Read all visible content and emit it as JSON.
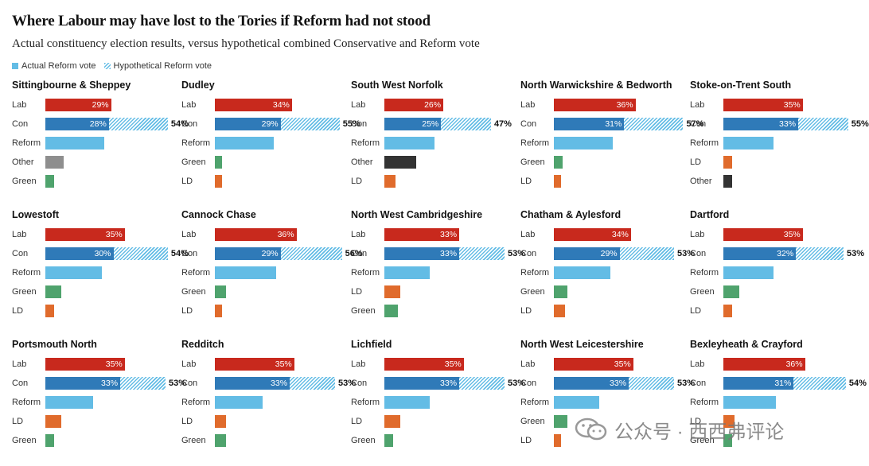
{
  "title": "Where Labour may have lost to the Tories if Reform had not stood",
  "subtitle": "Actual constituency election results, versus hypothetical combined Conservative and Reform vote",
  "legend": {
    "actual": "Actual Reform vote",
    "hypothetical": "Hypothetical Reform vote"
  },
  "colors": {
    "Lab": "#c8291d",
    "Con": "#2f7ab8",
    "Reform": "#63bce5",
    "Other": "#8e8e8e",
    "Green": "#4fa36d",
    "LD": "#e06b2c"
  },
  "watermark": "公众号 · 西西弗评论",
  "chart_data": [
    {
      "type": "bar",
      "title": "Sittingbourne & Sheppey",
      "rows": [
        {
          "party": "Lab",
          "value": 29,
          "label": "29%"
        },
        {
          "party": "Con",
          "value": 28,
          "label": "28%",
          "combined": 54,
          "combined_label": "54%"
        },
        {
          "party": "Reform",
          "value": 26
        },
        {
          "party": "Other",
          "value": 8
        },
        {
          "party": "Green",
          "value": 4
        }
      ]
    },
    {
      "type": "bar",
      "title": "Dudley",
      "rows": [
        {
          "party": "Lab",
          "value": 34,
          "label": "34%"
        },
        {
          "party": "Con",
          "value": 29,
          "label": "29%",
          "combined": 55,
          "combined_label": "55%"
        },
        {
          "party": "Reform",
          "value": 26
        },
        {
          "party": "Green",
          "value": 3
        },
        {
          "party": "LD",
          "value": 3
        }
      ]
    },
    {
      "type": "bar",
      "title": "South West Norfolk",
      "rows": [
        {
          "party": "Lab",
          "value": 26,
          "label": "26%"
        },
        {
          "party": "Con",
          "value": 25,
          "label": "25%",
          "combined": 47,
          "combined_label": "47%"
        },
        {
          "party": "Reform",
          "value": 22
        },
        {
          "party": "Other",
          "value": 14
        },
        {
          "party": "LD",
          "value": 5
        }
      ]
    },
    {
      "type": "bar",
      "title": "North Warwickshire & Bedworth",
      "rows": [
        {
          "party": "Lab",
          "value": 36,
          "label": "36%"
        },
        {
          "party": "Con",
          "value": 31,
          "label": "31%",
          "combined": 57,
          "combined_label": "57%"
        },
        {
          "party": "Reform",
          "value": 26
        },
        {
          "party": "Green",
          "value": 4
        },
        {
          "party": "LD",
          "value": 3
        }
      ]
    },
    {
      "type": "bar",
      "title": "Stoke-on-Trent South",
      "rows": [
        {
          "party": "Lab",
          "value": 35,
          "label": "35%"
        },
        {
          "party": "Con",
          "value": 33,
          "label": "33%",
          "combined": 55,
          "combined_label": "55%"
        },
        {
          "party": "Reform",
          "value": 22
        },
        {
          "party": "LD",
          "value": 4
        },
        {
          "party": "Other",
          "value": 4
        }
      ]
    },
    {
      "type": "bar",
      "title": "Lowestoft",
      "rows": [
        {
          "party": "Lab",
          "value": 35,
          "label": "35%"
        },
        {
          "party": "Con",
          "value": 30,
          "label": "30%",
          "combined": 54,
          "combined_label": "54%"
        },
        {
          "party": "Reform",
          "value": 25
        },
        {
          "party": "Green",
          "value": 7
        },
        {
          "party": "LD",
          "value": 4
        }
      ]
    },
    {
      "type": "bar",
      "title": "Cannock Chase",
      "rows": [
        {
          "party": "Lab",
          "value": 36,
          "label": "36%"
        },
        {
          "party": "Con",
          "value": 29,
          "label": "29%",
          "combined": 56,
          "combined_label": "56%"
        },
        {
          "party": "Reform",
          "value": 27
        },
        {
          "party": "Green",
          "value": 5
        },
        {
          "party": "LD",
          "value": 3
        }
      ]
    },
    {
      "type": "bar",
      "title": "North West Cambridgeshire",
      "rows": [
        {
          "party": "Lab",
          "value": 33,
          "label": "33%"
        },
        {
          "party": "Con",
          "value": 33,
          "label": "33%",
          "combined": 53,
          "combined_label": "53%"
        },
        {
          "party": "Reform",
          "value": 20
        },
        {
          "party": "LD",
          "value": 7
        },
        {
          "party": "Green",
          "value": 6
        }
      ]
    },
    {
      "type": "bar",
      "title": "Chatham & Aylesford",
      "rows": [
        {
          "party": "Lab",
          "value": 34,
          "label": "34%"
        },
        {
          "party": "Con",
          "value": 29,
          "label": "29%",
          "combined": 53,
          "combined_label": "53%"
        },
        {
          "party": "Reform",
          "value": 25
        },
        {
          "party": "Green",
          "value": 6
        },
        {
          "party": "LD",
          "value": 5
        }
      ]
    },
    {
      "type": "bar",
      "title": "Dartford",
      "rows": [
        {
          "party": "Lab",
          "value": 35,
          "label": "35%"
        },
        {
          "party": "Con",
          "value": 32,
          "label": "32%",
          "combined": 53,
          "combined_label": "53%"
        },
        {
          "party": "Reform",
          "value": 22
        },
        {
          "party": "Green",
          "value": 7
        },
        {
          "party": "LD",
          "value": 4
        }
      ]
    },
    {
      "type": "bar",
      "title": "Portsmouth North",
      "rows": [
        {
          "party": "Lab",
          "value": 35,
          "label": "35%"
        },
        {
          "party": "Con",
          "value": 33,
          "label": "33%",
          "combined": 53,
          "combined_label": "53%"
        },
        {
          "party": "Reform",
          "value": 21
        },
        {
          "party": "LD",
          "value": 7
        },
        {
          "party": "Green",
          "value": 4
        }
      ]
    },
    {
      "type": "bar",
      "title": "Redditch",
      "rows": [
        {
          "party": "Lab",
          "value": 35,
          "label": "35%"
        },
        {
          "party": "Con",
          "value": 33,
          "label": "33%",
          "combined": 53,
          "combined_label": "53%"
        },
        {
          "party": "Reform",
          "value": 21
        },
        {
          "party": "LD",
          "value": 5
        },
        {
          "party": "Green",
          "value": 5
        }
      ]
    },
    {
      "type": "bar",
      "title": "Lichfield",
      "rows": [
        {
          "party": "Lab",
          "value": 35,
          "label": "35%"
        },
        {
          "party": "Con",
          "value": 33,
          "label": "33%",
          "combined": 53,
          "combined_label": "53%"
        },
        {
          "party": "Reform",
          "value": 20
        },
        {
          "party": "LD",
          "value": 7
        },
        {
          "party": "Green",
          "value": 4
        }
      ]
    },
    {
      "type": "bar",
      "title": "North West Leicestershire",
      "rows": [
        {
          "party": "Lab",
          "value": 35,
          "label": "35%"
        },
        {
          "party": "Con",
          "value": 33,
          "label": "33%",
          "combined": 53,
          "combined_label": "53%"
        },
        {
          "party": "Reform",
          "value": 20
        },
        {
          "party": "Green",
          "value": 6
        },
        {
          "party": "LD",
          "value": 3
        }
      ]
    },
    {
      "type": "bar",
      "title": "Bexleyheath & Crayford",
      "rows": [
        {
          "party": "Lab",
          "value": 36,
          "label": "36%"
        },
        {
          "party": "Con",
          "value": 31,
          "label": "31%",
          "combined": 54,
          "combined_label": "54%"
        },
        {
          "party": "Reform",
          "value": 23
        },
        {
          "party": "LD",
          "value": 5
        },
        {
          "party": "Green",
          "value": 4
        }
      ]
    }
  ]
}
